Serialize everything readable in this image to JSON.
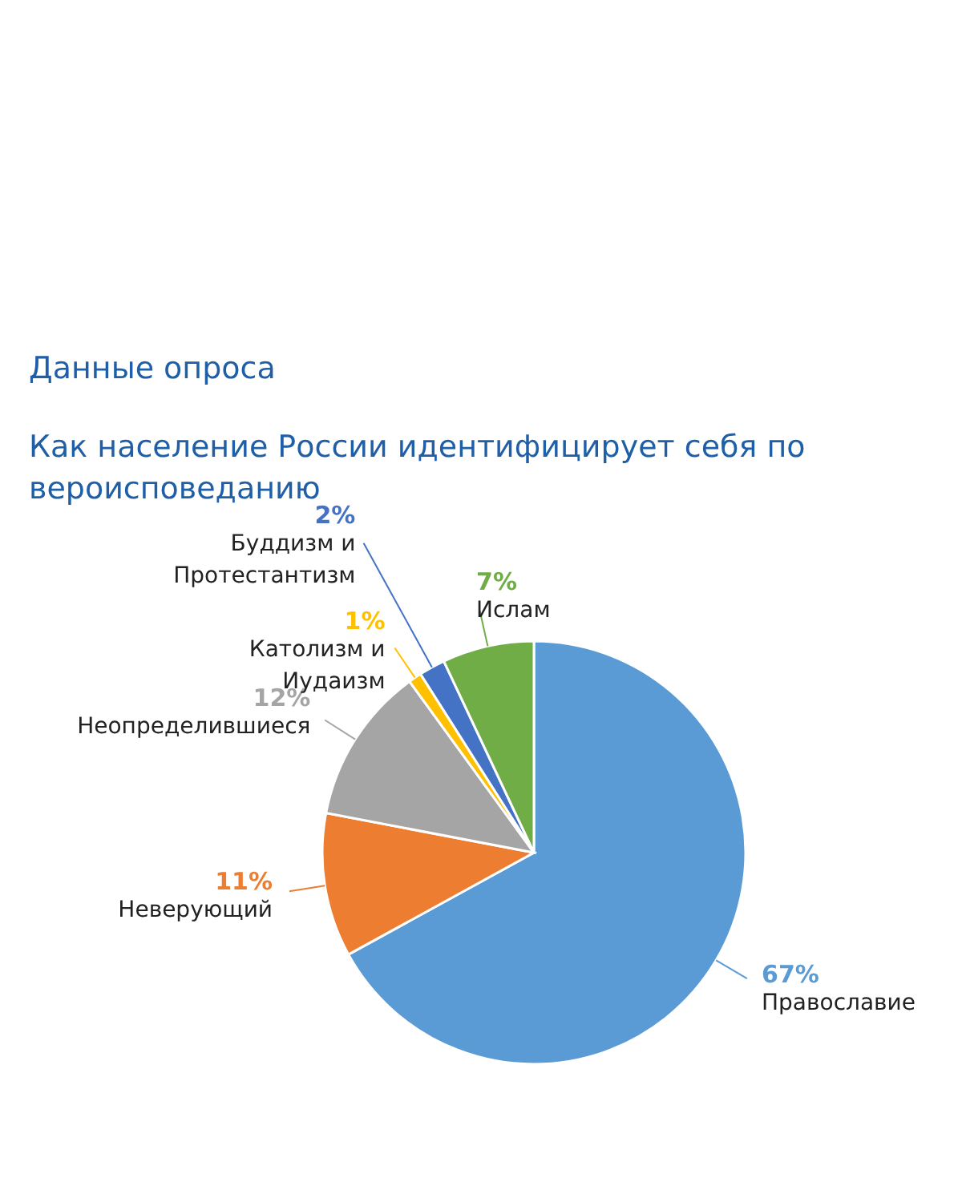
{
  "chart_data": {
    "type": "pie",
    "title": "Данные опроса",
    "subtitle": "Как население России идентифицирует себя по вероисповеданию",
    "categories": [
      "Православие",
      "Неверующий",
      "Неопределившиеся",
      "Католизм и Иудаизм",
      "Буддизм и Протестантизм",
      "Ислам"
    ],
    "values": [
      67,
      11,
      12,
      1,
      2,
      7
    ],
    "colors": [
      "#5b9bd5",
      "#ed7d31",
      "#a5a5a5",
      "#ffc000",
      "#4472c4",
      "#70ad47"
    ],
    "value_labels": [
      "67%",
      "11%",
      "12%",
      "1%",
      "2%",
      "7%"
    ]
  }
}
